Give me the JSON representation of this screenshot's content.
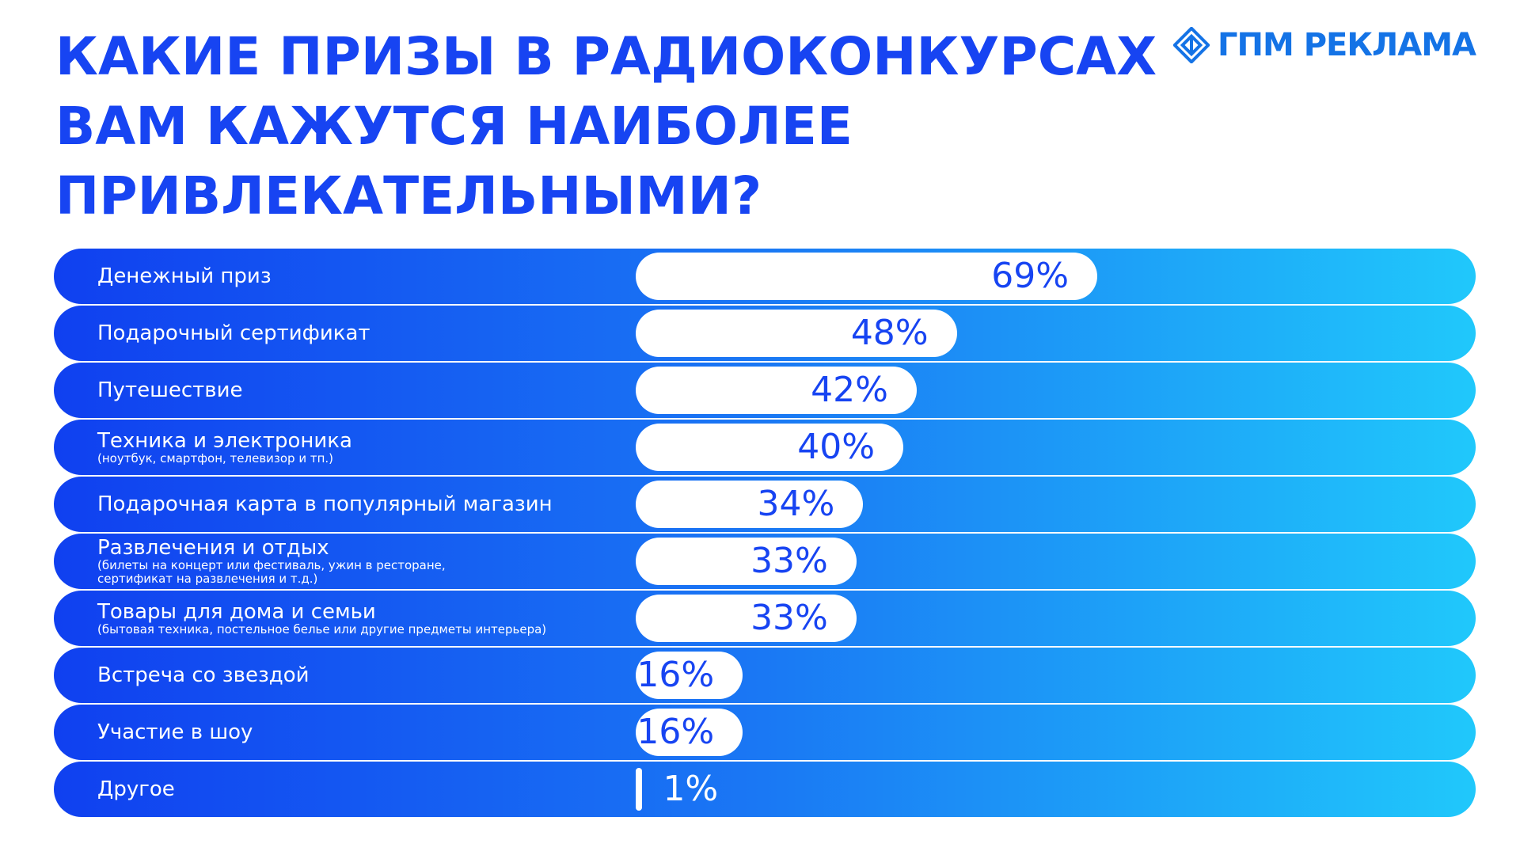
{
  "title_lines": [
    "КАКИЕ ПРИЗЫ В РАДИОКОНКУРСАХ",
    "ВАМ КАЖУТСЯ НАИБОЛЕЕ",
    "ПРИВЛЕКАТЕЛЬНЫМИ?"
  ],
  "logo": {
    "text": "ГПМ РЕКЛАМА",
    "icon": "diamond-logo-icon"
  },
  "colors": {
    "title": "#1744f2",
    "gradient_start": "#1040f0",
    "gradient_end": "#20c8fb",
    "bar": "#ffffff",
    "value_text": "#1744f2",
    "logo": "#1473e6"
  },
  "chart_data": {
    "type": "bar",
    "orientation": "horizontal",
    "title": "КАКИЕ ПРИЗЫ В РАДИОКОНКУРСАХ ВАМ КАЖУТСЯ НАИБОЛЕЕ ПРИВЛЕКАТЕЛЬНЫМИ?",
    "unit": "%",
    "xlim": [
      0,
      100
    ],
    "categories": [
      {
        "label": "Денежный приз",
        "sub": "",
        "value": 69,
        "value_label": "69%"
      },
      {
        "label": "Подарочный сертификат",
        "sub": "",
        "value": 48,
        "value_label": "48%"
      },
      {
        "label": "Путешествие",
        "sub": "",
        "value": 42,
        "value_label": "42%"
      },
      {
        "label": "Техника и электроника",
        "sub": "(ноутбук, смартфон, телевизор и  тп.)",
        "value": 40,
        "value_label": "40%"
      },
      {
        "label": "Подарочная карта в популярный магазин",
        "sub": "",
        "value": 34,
        "value_label": "34%"
      },
      {
        "label": "Развлечения и отдых",
        "sub": "(билеты на концерт или фестиваль, ужин в ресторане,\nсертификат на развлечения и т.д.)",
        "value": 33,
        "value_label": "33%"
      },
      {
        "label": "Товары для дома и семьи",
        "sub": "(бытовая техника, постельное белье или другие предметы интерьера)",
        "value": 33,
        "value_label": "33%"
      },
      {
        "label": "Встреча со звездой",
        "sub": "",
        "value": 16,
        "value_label": "16%"
      },
      {
        "label": "Участие в шоу",
        "sub": "",
        "value": 16,
        "value_label": "16%"
      },
      {
        "label": "Другое",
        "sub": "",
        "value": 1,
        "value_label": "1%"
      }
    ]
  }
}
